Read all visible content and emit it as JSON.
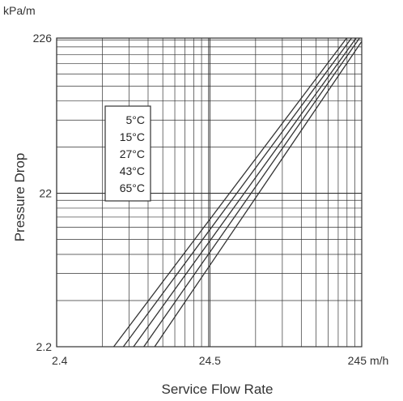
{
  "chart_data": {
    "type": "line",
    "title": "",
    "xlabel": "Service Flow Rate",
    "ylabel": "Pressure Drop",
    "x_unit": "m/h",
    "y_unit": "kPa/m",
    "x_scale": "log",
    "y_scale": "log",
    "xlim": [
      2.4,
      245
    ],
    "ylim": [
      2.2,
      226
    ],
    "x_ticks": [
      "2.4",
      "24.5",
      "245"
    ],
    "y_ticks": [
      "2.2",
      "22",
      "226"
    ],
    "grid": true,
    "legend_position": "top-left",
    "series": [
      {
        "name": "5°C",
        "x": [
          5.7,
          195
        ],
        "y": [
          2.2,
          226
        ]
      },
      {
        "name": "15°C",
        "x": [
          6.6,
          210
        ],
        "y": [
          2.2,
          226
        ]
      },
      {
        "name": "27°C",
        "x": [
          7.7,
          225
        ],
        "y": [
          2.2,
          226
        ]
      },
      {
        "name": "43°C",
        "x": [
          9.0,
          237
        ],
        "y": [
          2.2,
          226
        ]
      },
      {
        "name": "65°C",
        "x": [
          10.6,
          245
        ],
        "y": [
          2.2,
          215
        ]
      }
    ],
    "colors": {
      "grid": "#333333",
      "line": "#333333",
      "background": "#ffffff"
    }
  }
}
